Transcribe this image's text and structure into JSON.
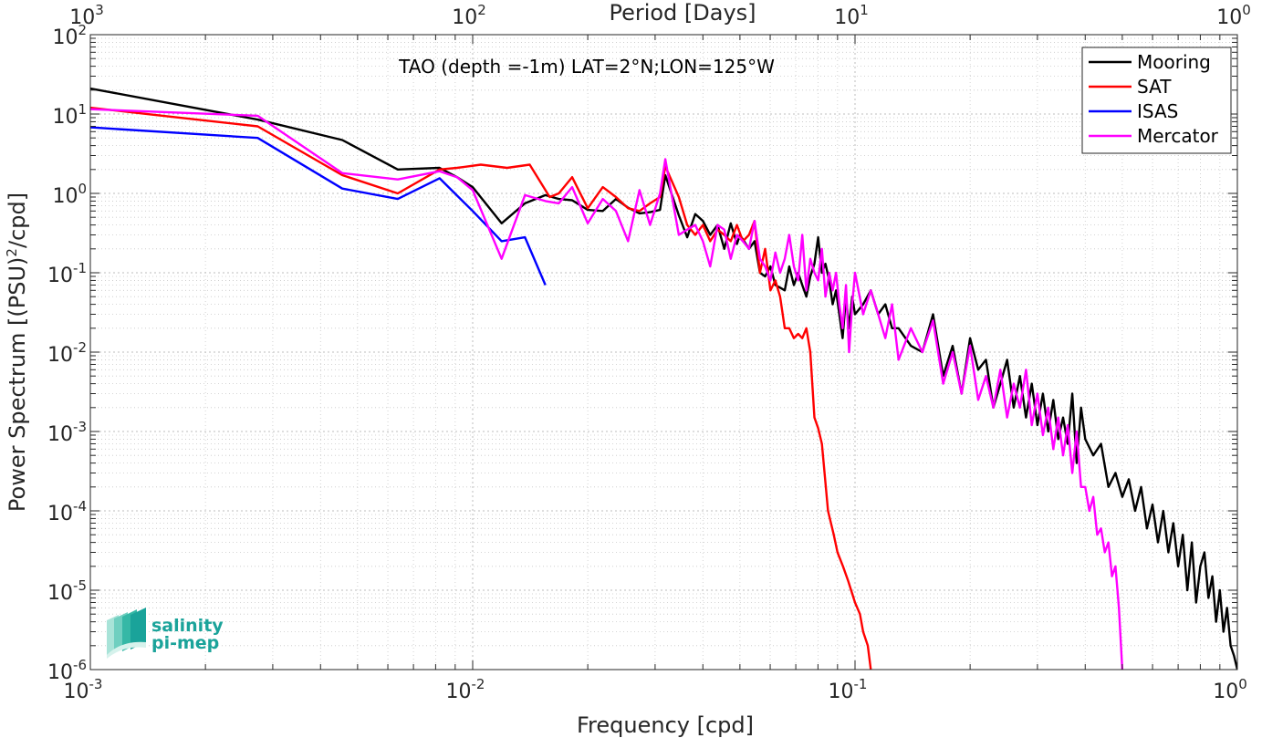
{
  "chart_data": {
    "type": "line",
    "title": "TAO (depth =-1m) LAT=2°N;LON=125°W",
    "xlabel": "Frequency [cpd]",
    "ylabel": "Power Spectrum [(PSU)",
    "ylabel_sup": "2",
    "ylabel_tail": "/cpd]",
    "top_xlabel": "Period [Days]",
    "x_scale": "log",
    "y_scale": "log",
    "xlim": [
      0.001,
      1
    ],
    "ylim": [
      1e-06,
      100
    ],
    "grid": true,
    "legend_position": "top-right",
    "x_ticks": [
      {
        "value": 0.001,
        "base": "10",
        "exp": "-3"
      },
      {
        "value": 0.01,
        "base": "10",
        "exp": "-2"
      },
      {
        "value": 0.1,
        "base": "10",
        "exp": "-1"
      },
      {
        "value": 1,
        "base": "10",
        "exp": "0"
      }
    ],
    "y_ticks": [
      {
        "value": 100,
        "base": "10",
        "exp": "2"
      },
      {
        "value": 10,
        "base": "10",
        "exp": "1"
      },
      {
        "value": 1,
        "base": "10",
        "exp": "0"
      },
      {
        "value": 0.1,
        "base": "10",
        "exp": "-1"
      },
      {
        "value": 0.01,
        "base": "10",
        "exp": "-2"
      },
      {
        "value": 0.001,
        "base": "10",
        "exp": "-3"
      },
      {
        "value": 0.0001,
        "base": "10",
        "exp": "-4"
      },
      {
        "value": 1e-05,
        "base": "10",
        "exp": "-5"
      },
      {
        "value": 1e-06,
        "base": "10",
        "exp": "-6"
      }
    ],
    "top_ticks": [
      {
        "freq": 0.001,
        "base": "10",
        "exp": "3"
      },
      {
        "freq": 0.01,
        "base": "10",
        "exp": "2"
      },
      {
        "freq": 0.1,
        "base": "10",
        "exp": "1"
      },
      {
        "freq": 1,
        "base": "10",
        "exp": "0"
      }
    ],
    "series": [
      {
        "name": "Mooring",
        "color": "#000000",
        "x": [
          0.001,
          0.00274,
          0.00456,
          0.00637,
          0.00819,
          0.0091,
          0.01,
          0.0119,
          0.0137,
          0.0155,
          0.0168,
          0.0182,
          0.02,
          0.0219,
          0.0237,
          0.0255,
          0.0273,
          0.0291,
          0.0309,
          0.0319,
          0.0346,
          0.0364,
          0.0382,
          0.04,
          0.0418,
          0.0437,
          0.0455,
          0.0473,
          0.0491,
          0.05,
          0.0528,
          0.0546,
          0.0564,
          0.0582,
          0.0601,
          0.0619,
          0.0637,
          0.0655,
          0.0673,
          0.0692,
          0.071,
          0.0728,
          0.0746,
          0.0764,
          0.0783,
          0.0801,
          0.0819,
          0.0837,
          0.0856,
          0.0874,
          0.0892,
          0.091,
          0.0928,
          0.0947,
          0.0965,
          0.0983,
          0.1,
          0.105,
          0.11,
          0.115,
          0.12,
          0.125,
          0.13,
          0.14,
          0.15,
          0.16,
          0.17,
          0.18,
          0.19,
          0.2,
          0.21,
          0.22,
          0.23,
          0.24,
          0.25,
          0.26,
          0.27,
          0.28,
          0.29,
          0.3,
          0.31,
          0.32,
          0.33,
          0.34,
          0.35,
          0.36,
          0.37,
          0.38,
          0.39,
          0.4,
          0.42,
          0.44,
          0.46,
          0.48,
          0.5,
          0.52,
          0.54,
          0.56,
          0.58,
          0.6,
          0.62,
          0.64,
          0.66,
          0.68,
          0.7,
          0.72,
          0.74,
          0.76,
          0.78,
          0.8,
          0.82,
          0.84,
          0.86,
          0.88,
          0.9,
          0.92,
          0.94,
          0.96,
          0.98,
          1.0
        ],
        "y": [
          21,
          8.5,
          4.7,
          2.0,
          2.1,
          1.6,
          1.2,
          0.42,
          0.75,
          0.95,
          0.85,
          0.82,
          0.62,
          0.6,
          0.85,
          0.66,
          0.56,
          0.58,
          0.62,
          1.7,
          0.53,
          0.28,
          0.55,
          0.45,
          0.3,
          0.4,
          0.2,
          0.42,
          0.23,
          0.3,
          0.2,
          0.25,
          0.1,
          0.09,
          0.12,
          0.07,
          0.065,
          0.06,
          0.12,
          0.07,
          0.1,
          0.07,
          0.05,
          0.09,
          0.13,
          0.28,
          0.1,
          0.13,
          0.08,
          0.04,
          0.06,
          0.03,
          0.015,
          0.05,
          0.02,
          0.05,
          0.03,
          0.04,
          0.06,
          0.03,
          0.04,
          0.02,
          0.02,
          0.012,
          0.01,
          0.03,
          0.005,
          0.012,
          0.003,
          0.015,
          0.006,
          0.008,
          0.002,
          0.004,
          0.008,
          0.002,
          0.005,
          0.0015,
          0.004,
          0.0012,
          0.003,
          0.001,
          0.0025,
          0.0008,
          0.0015,
          0.0007,
          0.003,
          0.0004,
          0.002,
          0.0008,
          0.0005,
          0.0007,
          0.0002,
          0.0003,
          0.00015,
          0.00025,
          0.0001,
          0.0002,
          6e-05,
          0.00012,
          4e-05,
          0.0001,
          3e-05,
          7e-05,
          2e-05,
          5e-05,
          1e-05,
          4e-05,
          7e-06,
          2e-05,
          3e-05,
          8e-06,
          1.5e-05,
          4e-06,
          1e-05,
          3e-06,
          6e-06,
          2e-06,
          1.5e-06,
          1e-06
        ]
      },
      {
        "name": "SAT",
        "color": "#ff0000",
        "x": [
          0.001,
          0.00274,
          0.00456,
          0.00637,
          0.00819,
          0.0091,
          0.0105,
          0.0123,
          0.0141,
          0.0159,
          0.0168,
          0.0182,
          0.02,
          0.0219,
          0.0237,
          0.0255,
          0.0273,
          0.0291,
          0.0309,
          0.0319,
          0.0346,
          0.0364,
          0.0382,
          0.04,
          0.0418,
          0.0437,
          0.0455,
          0.0473,
          0.0491,
          0.0509,
          0.0528,
          0.0546,
          0.0564,
          0.0582,
          0.0601,
          0.0619,
          0.0637,
          0.0655,
          0.0673,
          0.0692,
          0.071,
          0.0728,
          0.0746,
          0.0764,
          0.0783,
          0.0801,
          0.0819,
          0.085,
          0.088,
          0.09,
          0.093,
          0.096,
          0.1,
          0.103,
          0.105,
          0.108,
          0.11
        ],
        "y": [
          12,
          7.0,
          1.7,
          1.0,
          2.0,
          2.1,
          2.3,
          2.1,
          2.3,
          0.9,
          1.0,
          1.6,
          0.65,
          1.2,
          0.9,
          0.65,
          0.6,
          0.75,
          0.9,
          2.2,
          0.9,
          0.4,
          0.3,
          0.4,
          0.25,
          0.35,
          0.3,
          0.25,
          0.4,
          0.25,
          0.3,
          0.45,
          0.1,
          0.2,
          0.06,
          0.08,
          0.05,
          0.02,
          0.02,
          0.015,
          0.017,
          0.015,
          0.02,
          0.01,
          0.0015,
          0.0011,
          0.0007,
          0.0001,
          5e-05,
          3e-05,
          2e-05,
          1.3e-05,
          7e-06,
          5e-06,
          3e-06,
          2e-06,
          1e-06
        ]
      },
      {
        "name": "ISAS",
        "color": "#0000ff",
        "x": [
          0.001,
          0.00274,
          0.00456,
          0.00637,
          0.00819,
          0.01,
          0.0119,
          0.0137,
          0.0155
        ],
        "y": [
          6.8,
          5.0,
          1.15,
          0.85,
          1.55,
          0.6,
          0.25,
          0.28,
          0.07
        ]
      },
      {
        "name": "Mercator",
        "color": "#ff00ff",
        "x": [
          0.001,
          0.00274,
          0.00456,
          0.00637,
          0.00819,
          0.0091,
          0.01,
          0.0119,
          0.0137,
          0.0155,
          0.0168,
          0.0182,
          0.02,
          0.0219,
          0.0237,
          0.0255,
          0.0273,
          0.0291,
          0.0309,
          0.0319,
          0.0346,
          0.0364,
          0.0382,
          0.04,
          0.0418,
          0.0437,
          0.0455,
          0.0473,
          0.0491,
          0.0509,
          0.0528,
          0.0546,
          0.0564,
          0.0582,
          0.0601,
          0.0619,
          0.0637,
          0.0655,
          0.0673,
          0.0692,
          0.071,
          0.0728,
          0.0746,
          0.0764,
          0.0783,
          0.0801,
          0.0819,
          0.0837,
          0.0856,
          0.0874,
          0.0892,
          0.091,
          0.0928,
          0.0947,
          0.0965,
          0.0983,
          0.1,
          0.105,
          0.11,
          0.115,
          0.12,
          0.125,
          0.13,
          0.14,
          0.15,
          0.16,
          0.17,
          0.18,
          0.19,
          0.2,
          0.21,
          0.22,
          0.23,
          0.24,
          0.25,
          0.26,
          0.27,
          0.28,
          0.29,
          0.3,
          0.31,
          0.32,
          0.33,
          0.34,
          0.35,
          0.36,
          0.37,
          0.38,
          0.39,
          0.4,
          0.41,
          0.42,
          0.43,
          0.44,
          0.45,
          0.46,
          0.47,
          0.48,
          0.49,
          0.5
        ],
        "y": [
          11.5,
          9.5,
          1.8,
          1.5,
          1.9,
          1.6,
          1.1,
          0.15,
          0.95,
          0.8,
          0.75,
          1.2,
          0.42,
          0.85,
          0.6,
          0.25,
          1.1,
          0.4,
          1.0,
          2.7,
          0.3,
          0.35,
          0.4,
          0.25,
          0.12,
          0.4,
          0.35,
          0.15,
          0.3,
          0.25,
          0.2,
          0.45,
          0.15,
          0.12,
          0.08,
          0.18,
          0.1,
          0.15,
          0.3,
          0.12,
          0.08,
          0.3,
          0.06,
          0.15,
          0.1,
          0.08,
          0.2,
          0.05,
          0.1,
          0.06,
          0.1,
          0.04,
          0.02,
          0.07,
          0.01,
          0.04,
          0.1,
          0.03,
          0.06,
          0.03,
          0.015,
          0.04,
          0.008,
          0.02,
          0.01,
          0.025,
          0.004,
          0.01,
          0.003,
          0.012,
          0.0025,
          0.005,
          0.002,
          0.006,
          0.0015,
          0.004,
          0.002,
          0.006,
          0.0012,
          0.003,
          0.0009,
          0.002,
          0.0006,
          0.0015,
          0.0005,
          0.0012,
          0.0003,
          0.001,
          0.0002,
          0.0002,
          0.0001,
          0.00015,
          5e-05,
          6e-05,
          3e-05,
          4e-05,
          1.5e-05,
          2e-05,
          6e-06,
          1e-06
        ]
      }
    ]
  },
  "logo": {
    "line1": "salinity",
    "line2": "pi-mep",
    "color": "#1aa39a"
  }
}
